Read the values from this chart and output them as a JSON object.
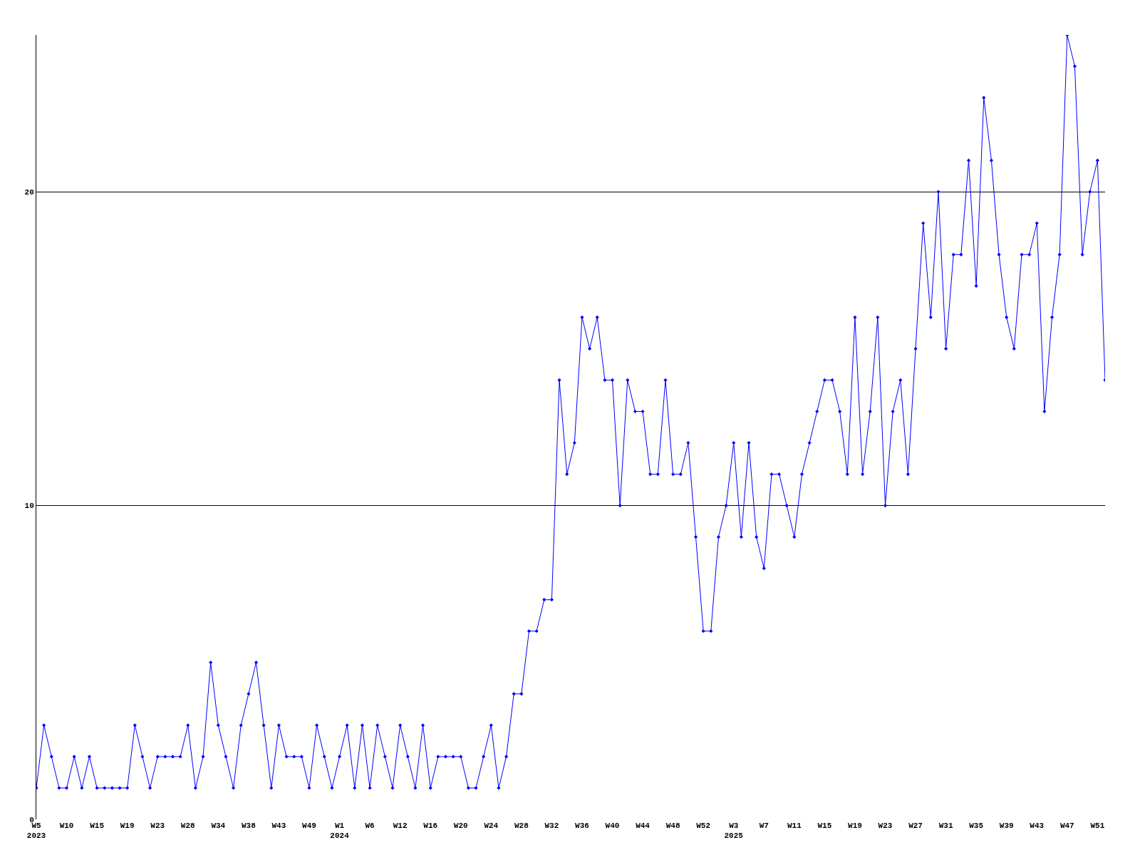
{
  "chart_data": {
    "type": "line",
    "categories": [
      "W5\n2023",
      null,
      null,
      null,
      "W10",
      null,
      null,
      null,
      "W15",
      null,
      null,
      null,
      "W19",
      null,
      null,
      null,
      "W23",
      null,
      null,
      null,
      "W28",
      null,
      null,
      null,
      "W34",
      null,
      null,
      null,
      "W38",
      null,
      null,
      null,
      "W43",
      null,
      null,
      null,
      "W49",
      null,
      null,
      null,
      "W1\n2024",
      null,
      null,
      null,
      "W6",
      null,
      null,
      null,
      "W12",
      null,
      null,
      null,
      "W16",
      null,
      null,
      null,
      "W20",
      null,
      null,
      null,
      "W24",
      null,
      null,
      null,
      "W28",
      null,
      null,
      null,
      "W32",
      null,
      null,
      null,
      "W36",
      null,
      null,
      null,
      "W40",
      null,
      null,
      null,
      "W44",
      null,
      null,
      null,
      "W48",
      null,
      null,
      null,
      "W52",
      null,
      null,
      null,
      "W3\n2025",
      null,
      null,
      null,
      "W7",
      null,
      null,
      null,
      "W11",
      null,
      null,
      null,
      "W15",
      null,
      null,
      null,
      "W19",
      null,
      null,
      null,
      "W23",
      null,
      null,
      null,
      "W27",
      null,
      null,
      null,
      "W31",
      null,
      null,
      null,
      "W35",
      null,
      null,
      null,
      "W39",
      null,
      null,
      null,
      "W43",
      null,
      null,
      null,
      "W47",
      null,
      null,
      null,
      "W51",
      null
    ],
    "series": [
      {
        "color": "#0000ff",
        "values": [
          1,
          3,
          2,
          1,
          1,
          2,
          1,
          2,
          1,
          1,
          1,
          1,
          1,
          3,
          2,
          1,
          2,
          2,
          2,
          2,
          3,
          1,
          2,
          5,
          3,
          2,
          1,
          3,
          4,
          5,
          3,
          1,
          3,
          2,
          2,
          2,
          1,
          3,
          2,
          1,
          2,
          3,
          1,
          3,
          1,
          3,
          2,
          1,
          3,
          2,
          1,
          3,
          1,
          2,
          2,
          2,
          2,
          1,
          1,
          2,
          3,
          1,
          2,
          4,
          4,
          6,
          6,
          7,
          7,
          14,
          11,
          12,
          16,
          15,
          16,
          14,
          14,
          10,
          14,
          13,
          13,
          11,
          11,
          14,
          11,
          11,
          12,
          9,
          6,
          6,
          9,
          10,
          12,
          9,
          12,
          9,
          8,
          11,
          11,
          10,
          9,
          11,
          12,
          13,
          14,
          14,
          13,
          11,
          16,
          11,
          13,
          16,
          10,
          13,
          14,
          11,
          15,
          19,
          16,
          20,
          15,
          18,
          18,
          21,
          17,
          23,
          21,
          18,
          16,
          15,
          18,
          18,
          19,
          13,
          16,
          18,
          25,
          24,
          18,
          20,
          21,
          14
        ]
      }
    ],
    "ylim": [
      0,
      25
    ],
    "yticks": [
      0,
      10,
      20
    ],
    "grid": "y",
    "marker": "diamond",
    "line_style": "solid"
  }
}
